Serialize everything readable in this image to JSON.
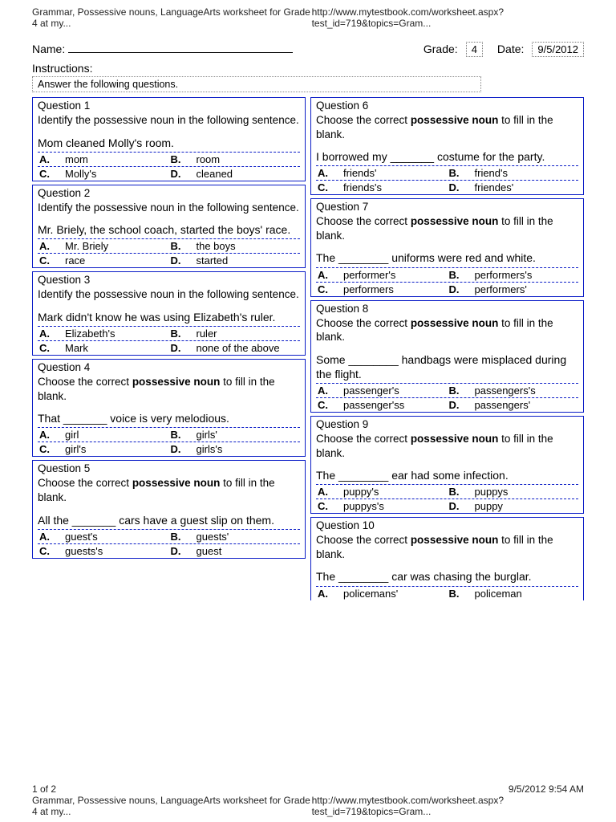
{
  "header": {
    "left": "Grammar, Possessive nouns, LanguageArts worksheet for Grade 4 at my...",
    "right": "http://www.mytestbook.com/worksheet.aspx?test_id=719&topics=Gram..."
  },
  "form": {
    "name_label": "Name:",
    "grade_label": "Grade:",
    "grade_value": "4",
    "date_label": "Date:",
    "date_value": "9/5/2012",
    "instructions_label": "Instructions:",
    "instructions_text": "Answer the following questions."
  },
  "left_col": [
    {
      "title": "Question 1",
      "prompt": "Identify the possessive noun in the following sentence.",
      "sentence": "Mom cleaned Molly's room.",
      "opts": [
        [
          "A.",
          "mom"
        ],
        [
          "B.",
          "room"
        ],
        [
          "C.",
          "Molly's"
        ],
        [
          "D.",
          "cleaned"
        ]
      ]
    },
    {
      "title": "Question 2",
      "prompt": "Identify the possessive noun in the following sentence.",
      "sentence": "Mr. Briely, the school coach, started the boys' race.",
      "opts": [
        [
          "A.",
          "Mr. Briely"
        ],
        [
          "B.",
          "the boys"
        ],
        [
          "C.",
          "race"
        ],
        [
          "D.",
          "started"
        ]
      ]
    },
    {
      "title": "Question 3",
      "prompt": "Identify the possessive noun in the following sentence.",
      "sentence": "Mark didn't know he was using Elizabeth's ruler.",
      "opts": [
        [
          "A.",
          "Elizabeth's"
        ],
        [
          "B.",
          "ruler"
        ],
        [
          "C.",
          "Mark"
        ],
        [
          "D.",
          "none of the above"
        ]
      ]
    },
    {
      "title": "Question 4",
      "prompt_html": "Choose the correct <b>possessive noun</b> to fill in the blank.",
      "sentence": "That _______ voice is very melodious.",
      "opts": [
        [
          "A.",
          "girl"
        ],
        [
          "B.",
          "girls'"
        ],
        [
          "C.",
          "girl's"
        ],
        [
          "D.",
          "girls's"
        ]
      ]
    },
    {
      "title": "Question 5",
      "prompt_html": "Choose the correct <b>possessive noun</b> to fill in the blank.",
      "sentence": "All the _______ cars have a guest slip on them.",
      "opts": [
        [
          "A.",
          "guest's"
        ],
        [
          "B.",
          "guests'"
        ],
        [
          "C.",
          "guests's"
        ],
        [
          "D.",
          "guest"
        ]
      ]
    }
  ],
  "right_col": [
    {
      "title": "Question 6",
      "prompt_html": "Choose the correct <b>possessive noun</b> to fill in the blank.",
      "sentence": "I borrowed my _______ costume for the party.",
      "opts": [
        [
          "A.",
          "friends'"
        ],
        [
          "B.",
          "friend's"
        ],
        [
          "C.",
          "friends's"
        ],
        [
          "D.",
          "friendes'"
        ]
      ]
    },
    {
      "title": "Question 7",
      "prompt_html": "Choose the correct <b>possessive noun</b> to fill in the blank.",
      "sentence": "The ________ uniforms were red and white.",
      "opts": [
        [
          "A.",
          "performer's"
        ],
        [
          "B.",
          "performers's"
        ],
        [
          "C.",
          "performers"
        ],
        [
          "D.",
          "performers'"
        ]
      ]
    },
    {
      "title": "Question 8",
      "prompt_html": "Choose the correct <b>possessive noun</b> to fill in the blank.",
      "sentence": "Some ________ handbags were misplaced during the flight.",
      "opts": [
        [
          "A.",
          "passenger's"
        ],
        [
          "B.",
          "passengers's"
        ],
        [
          "C.",
          "passenger'ss"
        ],
        [
          "D.",
          "passengers'"
        ]
      ]
    },
    {
      "title": "Question 9",
      "prompt_html": "Choose the correct <b>possessive noun</b> to fill in the blank.",
      "sentence": "The ________ ear had some infection.",
      "opts": [
        [
          "A.",
          "puppy's"
        ],
        [
          "B.",
          "puppys"
        ],
        [
          "C.",
          "puppys's"
        ],
        [
          "D.",
          "puppy"
        ]
      ]
    },
    {
      "title": "Question 10",
      "prompt_html": "Choose the correct <b>possessive noun</b> to fill in the blank.",
      "sentence": "The ________ car was chasing the burglar.",
      "opts": [
        [
          "A.",
          "policemans'"
        ],
        [
          "B.",
          "policeman"
        ]
      ]
    }
  ],
  "footer": {
    "page": "1 of 2",
    "timestamp": "9/5/2012 9:54 AM",
    "left": "Grammar, Possessive nouns, LanguageArts worksheet for Grade 4 at my...",
    "right": "http://www.mytestbook.com/worksheet.aspx?test_id=719&topics=Gram..."
  },
  "colors": {
    "box_border": "#0a1cc7",
    "dash_border": "#0a1cc7",
    "page_bg": "#ffffff",
    "body_bg": "#e5e5e5"
  }
}
